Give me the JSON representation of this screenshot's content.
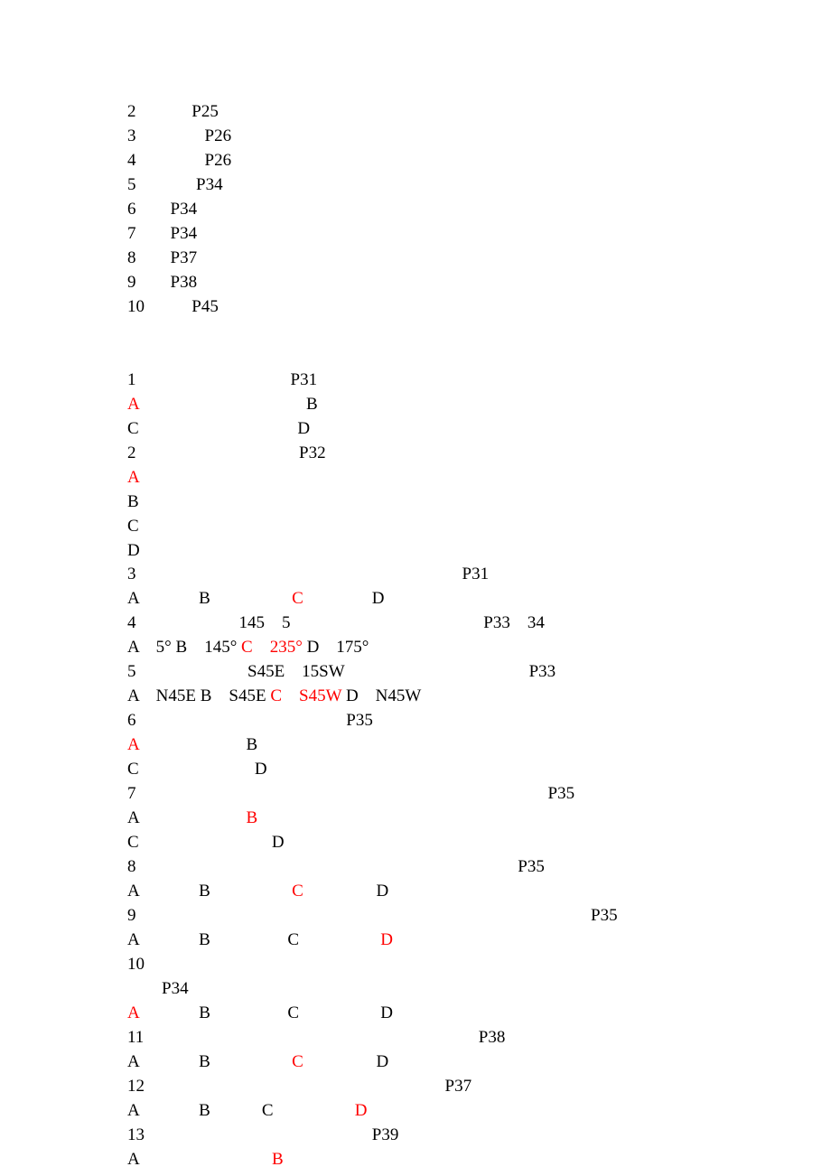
{
  "textColor": "#000000",
  "highlightColor": "#ff0000",
  "backgroundColor": "#ffffff",
  "fontFamily": "Times New Roman",
  "fontSize": 19,
  "section1": {
    "lines": [
      "2             P25",
      "3                P26",
      "4                P26",
      "5              P34",
      "6        P34",
      "7        P34",
      "8        P37",
      "9        P38",
      "10           P45"
    ]
  },
  "section2": {
    "items": [
      {
        "runs": [
          {
            "t": "1                                    P31"
          }
        ]
      },
      {
        "runs": [
          {
            "t": "A",
            "red": true
          },
          {
            "t": "                                       B"
          }
        ]
      },
      {
        "runs": [
          {
            "t": "C                                     D"
          }
        ]
      },
      {
        "runs": [
          {
            "t": "2                                      P32"
          }
        ]
      },
      {
        "runs": [
          {
            "t": "A",
            "red": true
          }
        ]
      },
      {
        "runs": [
          {
            "t": "B"
          }
        ]
      },
      {
        "runs": [
          {
            "t": "C"
          }
        ]
      },
      {
        "runs": [
          {
            "t": "D"
          }
        ]
      },
      {
        "runs": [
          {
            "t": "3                                                                            P31"
          }
        ]
      },
      {
        "runs": [
          {
            "t": "A              B                   "
          },
          {
            "t": "C",
            "red": true
          },
          {
            "t": "                D"
          }
        ]
      },
      {
        "runs": [
          {
            "t": "4                        145    5                                             P33    34"
          }
        ]
      },
      {
        "runs": [
          {
            "t": "A    5° B    145° "
          },
          {
            "t": "C    235°",
            "red": true
          },
          {
            "t": " D    175°"
          }
        ]
      },
      {
        "runs": [
          {
            "t": "5                          S45E    15SW                                           P33"
          }
        ]
      },
      {
        "runs": [
          {
            "t": "A    N45E B    S45E "
          },
          {
            "t": "C    S45W",
            "red": true
          },
          {
            "t": " D    N45W"
          }
        ]
      },
      {
        "runs": [
          {
            "t": "6                                                 P35"
          }
        ]
      },
      {
        "runs": [
          {
            "t": "A",
            "red": true
          },
          {
            "t": "                         B"
          }
        ]
      },
      {
        "runs": [
          {
            "t": "C                           D"
          }
        ]
      },
      {
        "runs": [
          {
            "t": "7                                                                                                P35"
          }
        ]
      },
      {
        "runs": [
          {
            "t": "A                         "
          },
          {
            "t": "B",
            "red": true
          }
        ]
      },
      {
        "runs": [
          {
            "t": "C                               D"
          }
        ]
      },
      {
        "runs": [
          {
            "t": "8                                                                                         P35"
          }
        ]
      },
      {
        "runs": [
          {
            "t": "A              B                   "
          },
          {
            "t": "C",
            "red": true
          },
          {
            "t": "                 D"
          }
        ]
      },
      {
        "runs": [
          {
            "t": "9                                                                                                          P35"
          }
        ]
      },
      {
        "runs": [
          {
            "t": "A              B                  C                   "
          },
          {
            "t": "D",
            "red": true
          }
        ]
      },
      {
        "runs": [
          {
            "t": "10"
          }
        ]
      },
      {
        "runs": [
          {
            "t": "        P34"
          }
        ]
      },
      {
        "runs": [
          {
            "t": "A",
            "red": true
          },
          {
            "t": "              B                  C                   D"
          }
        ]
      },
      {
        "runs": [
          {
            "t": "11                                                                              P38"
          }
        ]
      },
      {
        "runs": [
          {
            "t": "A              B                   "
          },
          {
            "t": "C",
            "red": true
          },
          {
            "t": "                 D"
          }
        ]
      },
      {
        "runs": [
          {
            "t": "12                                                                      P37"
          }
        ]
      },
      {
        "runs": [
          {
            "t": "A              B            C                   "
          },
          {
            "t": "D",
            "red": true
          }
        ]
      },
      {
        "runs": [
          {
            "t": "13                                                     P39"
          }
        ]
      },
      {
        "runs": [
          {
            "t": "A                               "
          },
          {
            "t": "B",
            "red": true
          }
        ]
      }
    ]
  }
}
